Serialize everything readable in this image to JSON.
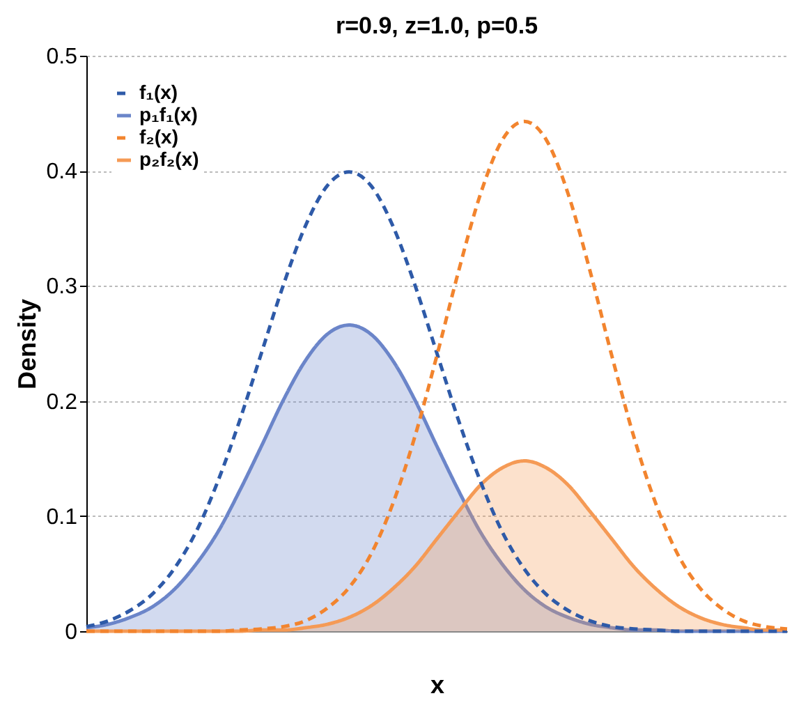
{
  "chart_data": {
    "type": "line",
    "title": "r=0.9, z=1.0, p=0.5",
    "xlabel": "x",
    "ylabel": "Density",
    "categories": [
      null,
      null,
      null,
      null,
      null,
      null,
      null,
      null,
      null,
      null,
      null,
      null,
      null,
      null,
      null,
      null,
      null,
      null,
      null,
      null,
      null,
      null,
      null,
      null,
      null,
      null,
      null,
      null,
      null,
      null,
      null,
      null,
      null
    ],
    "series": [
      {
        "name": "f₁(x)",
        "line_style": "dashed",
        "color": "#2e5aa8",
        "values": [
          0.004,
          0.009,
          0.018,
          0.032,
          0.054,
          0.086,
          0.13,
          0.183,
          0.242,
          0.301,
          0.352,
          0.387,
          0.399,
          0.387,
          0.352,
          0.301,
          0.242,
          0.183,
          0.13,
          0.086,
          0.054,
          0.032,
          0.018,
          0.009,
          0.004,
          0.002,
          0.001,
          0.0,
          0.0,
          0.0,
          0.0,
          0.0,
          0.0
        ]
      },
      {
        "name": "p₁f₁(x)",
        "type": "area",
        "line_style": "solid",
        "color": "#6b85c9",
        "values": [
          0.003,
          0.006,
          0.012,
          0.021,
          0.036,
          0.058,
          0.086,
          0.122,
          0.161,
          0.201,
          0.235,
          0.258,
          0.266,
          0.258,
          0.235,
          0.201,
          0.161,
          0.122,
          0.086,
          0.058,
          0.036,
          0.021,
          0.012,
          0.006,
          0.003,
          0.001,
          0.001,
          0.0,
          0.0,
          0.0,
          0.0,
          0.0,
          0.0
        ]
      },
      {
        "name": "f₂(x)",
        "line_style": "dashed",
        "color": "#f2842e",
        "values": [
          0.0,
          0.0,
          0.0,
          0.0,
          0.0,
          0.0,
          0.0,
          0.001,
          0.002,
          0.004,
          0.009,
          0.02,
          0.038,
          0.067,
          0.111,
          0.169,
          0.239,
          0.313,
          0.38,
          0.427,
          0.443,
          0.427,
          0.38,
          0.313,
          0.239,
          0.169,
          0.111,
          0.067,
          0.038,
          0.02,
          0.009,
          0.004,
          0.002
        ]
      },
      {
        "name": "p₂f₂(x)",
        "type": "area",
        "line_style": "solid",
        "color": "#f59a55",
        "values": [
          0.0,
          0.0,
          0.0,
          0.0,
          0.0,
          0.0,
          0.0,
          0.0,
          0.001,
          0.001,
          0.003,
          0.006,
          0.012,
          0.022,
          0.037,
          0.056,
          0.08,
          0.104,
          0.127,
          0.142,
          0.148,
          0.142,
          0.127,
          0.104,
          0.08,
          0.056,
          0.037,
          0.022,
          0.012,
          0.006,
          0.003,
          0.001,
          0.001
        ]
      }
    ],
    "ylim": [
      0,
      0.5
    ],
    "yticks": [
      0,
      0.1,
      0.2,
      0.3,
      0.4,
      0.5
    ],
    "grid": "y",
    "legend": "top left",
    "tick_labels": "y"
  }
}
